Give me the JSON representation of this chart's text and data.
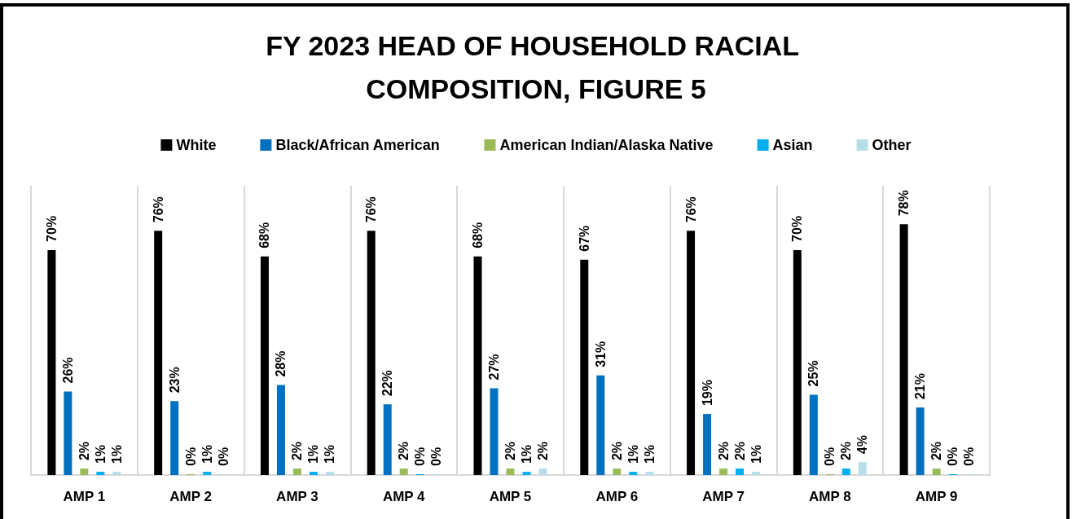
{
  "chart_data": {
    "type": "bar",
    "title": "FY 2023 HEAD OF HOUSEHOLD RACIAL COMPOSITION, FIGURE 5",
    "categories": [
      "AMP 1",
      "AMP 2",
      "AMP 3",
      "AMP 4",
      "AMP 5",
      "AMP 6",
      "AMP 7",
      "AMP 8",
      "AMP 9"
    ],
    "series": [
      {
        "name": "White",
        "color": "#000000",
        "values": [
          70,
          76,
          68,
          76,
          68,
          67,
          76,
          70,
          78
        ],
        "value_labels": [
          "70%",
          "76%",
          "68%",
          "76%",
          "68%",
          "67%",
          "76%",
          "70%",
          "78%"
        ]
      },
      {
        "name": "Black/African American",
        "color": "#0070c0",
        "values": [
          26,
          23,
          28,
          22,
          27,
          31,
          19,
          25,
          21
        ],
        "value_labels": [
          "26%",
          "23%",
          "28%",
          "22%",
          "27%",
          "31%",
          "19%",
          "25%",
          "21%"
        ]
      },
      {
        "name": "American Indian/Alaska Native",
        "color": "#9bbb59",
        "values": [
          2,
          0,
          2,
          2,
          2,
          2,
          2,
          0,
          2
        ],
        "value_labels": [
          "2%",
          "0%",
          "2%",
          "2%",
          "2%",
          "2%",
          "2%",
          "0%",
          "2%"
        ]
      },
      {
        "name": "Asian",
        "color": "#00b0f0",
        "values": [
          1,
          1,
          1,
          0,
          1,
          1,
          2,
          2,
          0
        ],
        "value_labels": [
          "1%",
          "1%",
          "1%",
          "0%",
          "1%",
          "1%",
          "2%",
          "2%",
          "0%"
        ]
      },
      {
        "name": "Other",
        "color": "#b7dee8",
        "values": [
          1,
          0,
          1,
          0,
          2,
          1,
          1,
          4,
          0
        ],
        "value_labels": [
          "1%",
          "0%",
          "1%",
          "0%",
          "2%",
          "1%",
          "1%",
          "4%",
          "0%"
        ]
      }
    ],
    "ylim": [
      0,
      90
    ],
    "tick_labels": "x",
    "grid": "x",
    "legend": "top"
  }
}
